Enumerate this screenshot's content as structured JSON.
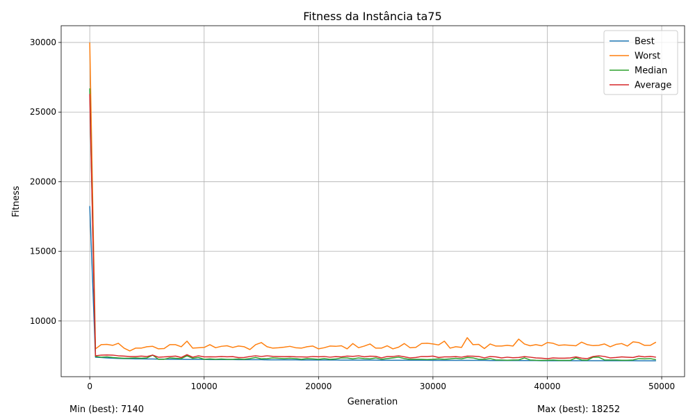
{
  "chart_data": {
    "type": "line",
    "title": "Fitness da Instância ta75",
    "xlabel": "Generation",
    "ylabel": "Fitness",
    "xlim": [
      -2500,
      52000
    ],
    "ylim": [
      6000,
      31200
    ],
    "xticks": [
      0,
      10000,
      20000,
      30000,
      40000,
      50000
    ],
    "yticks": [
      10000,
      15000,
      20000,
      25000,
      30000
    ],
    "grid": true,
    "legend_position": "top-right",
    "x": [
      0,
      500,
      1000,
      1500,
      2000,
      2500,
      3000,
      3500,
      4000,
      4500,
      5000,
      5500,
      6000,
      6500,
      7000,
      7500,
      8000,
      8500,
      9000,
      9500,
      10000,
      10500,
      11000,
      11500,
      12000,
      12500,
      13000,
      13500,
      14000,
      14500,
      15000,
      15500,
      16000,
      16500,
      17000,
      17500,
      18000,
      18500,
      19000,
      19500,
      20000,
      20500,
      21000,
      21500,
      22000,
      22500,
      23000,
      23500,
      24000,
      24500,
      25000,
      25500,
      26000,
      26500,
      27000,
      27500,
      28000,
      28500,
      29000,
      29500,
      30000,
      30500,
      31000,
      31500,
      32000,
      32500,
      33000,
      33500,
      34000,
      34500,
      35000,
      35500,
      36000,
      36500,
      37000,
      37500,
      38000,
      38500,
      39000,
      39500,
      40000,
      40500,
      41000,
      41500,
      42000,
      42500,
      43000,
      43500,
      44000,
      44500,
      45000,
      45500,
      46000,
      46500,
      47000,
      47500,
      48000,
      48500,
      49000,
      49500
    ],
    "series": [
      {
        "name": "Best",
        "color": "#1f77b4",
        "values": [
          18252,
          7400,
          7380,
          7350,
          7330,
          7310,
          7300,
          7290,
          7280,
          7280,
          7270,
          7270,
          7260,
          7260,
          7250,
          7250,
          7250,
          7240,
          7240,
          7240,
          7240,
          7230,
          7230,
          7230,
          7230,
          7230,
          7220,
          7220,
          7220,
          7220,
          7220,
          7210,
          7210,
          7210,
          7210,
          7210,
          7210,
          7200,
          7200,
          7200,
          7200,
          7200,
          7200,
          7200,
          7190,
          7190,
          7190,
          7190,
          7190,
          7190,
          7190,
          7180,
          7180,
          7180,
          7180,
          7180,
          7180,
          7180,
          7180,
          7180,
          7170,
          7170,
          7170,
          7170,
          7170,
          7170,
          7170,
          7170,
          7170,
          7170,
          7160,
          7160,
          7160,
          7160,
          7160,
          7160,
          7160,
          7160,
          7160,
          7150,
          7150,
          7150,
          7150,
          7150,
          7150,
          7150,
          7150,
          7150,
          7150,
          7150,
          7150,
          7150,
          7150,
          7150,
          7150,
          7150,
          7140,
          7140,
          7140,
          7140
        ]
      },
      {
        "name": "Worst",
        "color": "#ff7f0e",
        "values": [
          30000,
          8000,
          8300,
          8320,
          8250,
          8400,
          8050,
          7850,
          8050,
          8050,
          8150,
          8180,
          8000,
          8020,
          8300,
          8300,
          8150,
          8550,
          8050,
          8080,
          8100,
          8300,
          8080,
          8180,
          8220,
          8100,
          8200,
          8150,
          7950,
          8300,
          8450,
          8150,
          8050,
          8080,
          8120,
          8180,
          8080,
          8050,
          8150,
          8200,
          8000,
          8080,
          8200,
          8180,
          8220,
          8000,
          8380,
          8080,
          8200,
          8350,
          8050,
          8050,
          8220,
          8000,
          8120,
          8380,
          8080,
          8100,
          8380,
          8400,
          8350,
          8280,
          8550,
          8050,
          8150,
          8100,
          8800,
          8300,
          8320,
          8020,
          8350,
          8200,
          8200,
          8250,
          8200,
          8700,
          8350,
          8220,
          8300,
          8220,
          8450,
          8400,
          8250,
          8280,
          8250,
          8220,
          8480,
          8300,
          8230,
          8250,
          8350,
          8150,
          8320,
          8380,
          8200,
          8500,
          8450,
          8250,
          8250,
          8480
        ]
      },
      {
        "name": "Median",
        "color": "#2ca02c",
        "values": [
          26700,
          7450,
          7400,
          7420,
          7380,
          7350,
          7320,
          7330,
          7350,
          7320,
          7350,
          7550,
          7250,
          7250,
          7350,
          7320,
          7300,
          7500,
          7320,
          7380,
          7250,
          7280,
          7250,
          7270,
          7250,
          7250,
          7270,
          7250,
          7300,
          7380,
          7280,
          7300,
          7350,
          7320,
          7300,
          7320,
          7300,
          7250,
          7300,
          7280,
          7250,
          7300,
          7250,
          7270,
          7350,
          7350,
          7280,
          7350,
          7300,
          7280,
          7350,
          7250,
          7300,
          7350,
          7400,
          7300,
          7250,
          7250,
          7250,
          7230,
          7250,
          7280,
          7250,
          7280,
          7320,
          7280,
          7380,
          7350,
          7250,
          7250,
          7300,
          7200,
          7200,
          7180,
          7200,
          7200,
          7350,
          7200,
          7180,
          7170,
          7180,
          7200,
          7170,
          7170,
          7170,
          7350,
          7200,
          7180,
          7400,
          7400,
          7200,
          7200,
          7200,
          7180,
          7180,
          7200,
          7300,
          7280,
          7300,
          7220
        ]
      },
      {
        "name": "Average",
        "color": "#d62728",
        "values": [
          26300,
          7500,
          7550,
          7560,
          7550,
          7500,
          7480,
          7450,
          7450,
          7480,
          7450,
          7550,
          7400,
          7420,
          7450,
          7480,
          7380,
          7580,
          7400,
          7500,
          7420,
          7430,
          7420,
          7450,
          7430,
          7440,
          7370,
          7380,
          7450,
          7500,
          7450,
          7500,
          7460,
          7450,
          7440,
          7450,
          7430,
          7420,
          7410,
          7450,
          7430,
          7450,
          7400,
          7440,
          7420,
          7480,
          7460,
          7500,
          7430,
          7470,
          7460,
          7350,
          7450,
          7450,
          7500,
          7430,
          7350,
          7380,
          7450,
          7450,
          7480,
          7380,
          7420,
          7420,
          7440,
          7400,
          7480,
          7470,
          7450,
          7350,
          7450,
          7420,
          7350,
          7400,
          7360,
          7380,
          7440,
          7400,
          7350,
          7330,
          7290,
          7350,
          7330,
          7330,
          7350,
          7420,
          7330,
          7300,
          7450,
          7500,
          7450,
          7350,
          7380,
          7420,
          7400,
          7380,
          7480,
          7420,
          7460,
          7400
        ]
      }
    ]
  },
  "notes": {
    "min_best": "Min (best): 7140",
    "max_best": "Max (best): 18252"
  }
}
